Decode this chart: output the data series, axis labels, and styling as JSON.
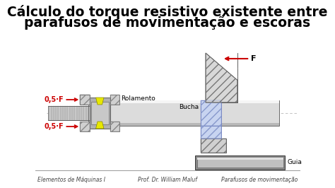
{
  "title_line1": "Cálculo do torque resistivo existente entre",
  "title_line2": "parafusos de movimentação e escoras",
  "bg_color": "#ffffff",
  "title_color": "#000000",
  "footer_left": "Elementos de Máquinas I",
  "footer_center": "Prof. Dr. William Maluf",
  "footer_right": "Parafusos de movimentação",
  "footer_color": "#444444",
  "label_rolamento": "Rolamento",
  "label_bucha": "Bucha",
  "label_guia": "Guia",
  "label_F": "F",
  "label_05F_top": "0,5·F",
  "label_05F_bot": "0,5·F",
  "red_color": "#cc0000",
  "yellow_color": "#e8e800",
  "hatch_gray": "#aaaaaa",
  "hatch_blue": "#8899cc",
  "shaft_color": "#d8d8d8",
  "dark_gray": "#555555",
  "mid_gray": "#999999",
  "light_gray": "#e8e8e8",
  "line_color": "#000000",
  "bearing_dark": "#888888",
  "bearing_mid": "#b0b0b0",
  "bearing_light": "#d0d0d0",
  "bucha_fill": "#d0d0d0",
  "blue_inner": "#c8d4f0"
}
